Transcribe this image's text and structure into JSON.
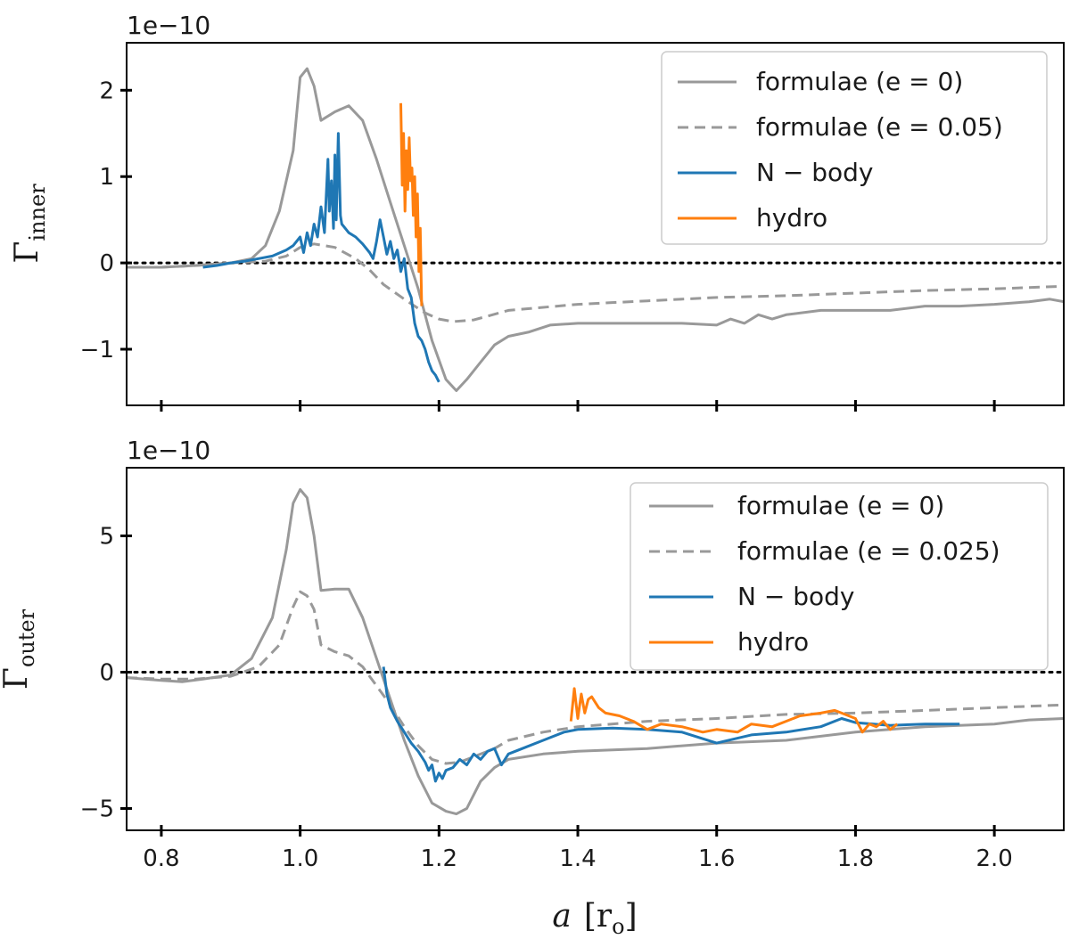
{
  "colors": {
    "formula": "#999999",
    "nbody": "#1f77b4",
    "hydro": "#ff7f0e",
    "axis": "#000000",
    "zero_line": "#000000"
  },
  "xlabel": {
    "symbol": "a",
    "unit": "[r",
    "unit_sub": "o",
    "unit_close": "]"
  },
  "chart_data": [
    {
      "type": "line",
      "panel": "top",
      "ylabel": "Γ",
      "ylabel_sub": "inner",
      "offset_text": "1e−10",
      "xlim": [
        0.75,
        2.1
      ],
      "ylim": [
        -1.65,
        2.55
      ],
      "xticks": [
        0.8,
        1.0,
        1.2,
        1.4,
        1.6,
        1.8,
        2.0
      ],
      "xtick_labels": [],
      "yticks": [
        -1,
        0,
        1,
        2
      ],
      "ytick_labels": [
        "−1",
        "0",
        "1",
        "2"
      ],
      "zero_line": true,
      "legend": {
        "position": "top-right",
        "entries": [
          {
            "label": "formulae (e = 0)",
            "style": "solid",
            "color_key": "formula"
          },
          {
            "label": "formulae (e = 0.05)",
            "style": "dashed",
            "color_key": "formula"
          },
          {
            "label": "N − body",
            "style": "solid",
            "color_key": "nbody"
          },
          {
            "label": "hydro",
            "style": "solid",
            "color_key": "hydro"
          }
        ]
      },
      "series": [
        {
          "name": "formulae (e = 0)",
          "color_key": "formula",
          "style": "solid",
          "width": 3,
          "x": [
            0.75,
            0.8,
            0.85,
            0.9,
            0.93,
            0.95,
            0.97,
            0.99,
            1.0,
            1.01,
            1.02,
            1.03,
            1.05,
            1.07,
            1.09,
            1.11,
            1.13,
            1.15,
            1.17,
            1.19,
            1.21,
            1.225,
            1.24,
            1.26,
            1.28,
            1.3,
            1.33,
            1.36,
            1.4,
            1.45,
            1.5,
            1.55,
            1.6,
            1.62,
            1.64,
            1.66,
            1.68,
            1.7,
            1.75,
            1.8,
            1.85,
            1.9,
            1.95,
            2.0,
            2.05,
            2.08,
            2.1
          ],
          "y": [
            -0.05,
            -0.05,
            -0.03,
            0.0,
            0.05,
            0.2,
            0.6,
            1.3,
            2.15,
            2.25,
            2.05,
            1.65,
            1.75,
            1.82,
            1.65,
            1.2,
            0.7,
            0.2,
            -0.3,
            -0.9,
            -1.35,
            -1.48,
            -1.35,
            -1.15,
            -0.95,
            -0.85,
            -0.8,
            -0.72,
            -0.7,
            -0.7,
            -0.7,
            -0.7,
            -0.72,
            -0.65,
            -0.7,
            -0.6,
            -0.65,
            -0.6,
            -0.55,
            -0.55,
            -0.55,
            -0.5,
            -0.5,
            -0.48,
            -0.45,
            -0.42,
            -0.45
          ]
        },
        {
          "name": "formulae (e = 0.05)",
          "color_key": "formula",
          "style": "dashed",
          "width": 3,
          "x": [
            0.75,
            0.8,
            0.85,
            0.9,
            0.95,
            0.98,
            1.0,
            1.02,
            1.05,
            1.08,
            1.1,
            1.12,
            1.15,
            1.18,
            1.2,
            1.22,
            1.25,
            1.3,
            1.4,
            1.5,
            1.6,
            1.7,
            1.8,
            1.9,
            2.0,
            2.1
          ],
          "y": [
            -0.05,
            -0.05,
            -0.03,
            0.0,
            0.02,
            0.08,
            0.18,
            0.22,
            0.18,
            0.05,
            -0.08,
            -0.25,
            -0.42,
            -0.58,
            -0.65,
            -0.68,
            -0.66,
            -0.55,
            -0.48,
            -0.44,
            -0.4,
            -0.38,
            -0.35,
            -0.32,
            -0.3,
            -0.27
          ]
        },
        {
          "name": "N − body",
          "color_key": "nbody",
          "style": "solid",
          "width": 3,
          "x": [
            0.86,
            0.88,
            0.9,
            0.92,
            0.94,
            0.96,
            0.98,
            0.99,
            1.0,
            1.005,
            1.01,
            1.015,
            1.02,
            1.025,
            1.03,
            1.035,
            1.04,
            1.042,
            1.045,
            1.048,
            1.05,
            1.052,
            1.055,
            1.058,
            1.06,
            1.065,
            1.07,
            1.08,
            1.09,
            1.1,
            1.105,
            1.11,
            1.115,
            1.12,
            1.125,
            1.13,
            1.135,
            1.14,
            1.145,
            1.15,
            1.155,
            1.16,
            1.165,
            1.17,
            1.175,
            1.18,
            1.185,
            1.19,
            1.195,
            1.2
          ],
          "y": [
            -0.05,
            -0.03,
            0.0,
            0.02,
            0.05,
            0.08,
            0.15,
            0.2,
            0.3,
            0.12,
            0.35,
            0.2,
            0.45,
            0.3,
            0.65,
            0.35,
            1.2,
            0.6,
            0.95,
            0.4,
            1.25,
            0.5,
            1.5,
            0.55,
            0.45,
            0.4,
            0.35,
            0.3,
            0.22,
            0.12,
            0.05,
            0.25,
            0.5,
            0.3,
            0.1,
            0.25,
            0.05,
            0.15,
            -0.1,
            0.05,
            -0.3,
            -0.4,
            -0.7,
            -0.85,
            -0.9,
            -1.0,
            -1.15,
            -1.25,
            -1.3,
            -1.38
          ]
        },
        {
          "name": "hydro",
          "color_key": "hydro",
          "style": "solid",
          "width": 3,
          "x": [
            1.145,
            1.147,
            1.149,
            1.151,
            1.153,
            1.155,
            1.157,
            1.159,
            1.161,
            1.163,
            1.165,
            1.167,
            1.169,
            1.171,
            1.173,
            1.175
          ],
          "y": [
            1.85,
            0.9,
            1.5,
            0.6,
            1.3,
            0.85,
            1.45,
            0.95,
            1.1,
            0.55,
            1.0,
            0.3,
            0.8,
            -0.1,
            0.4,
            -0.5
          ]
        }
      ]
    },
    {
      "type": "line",
      "panel": "bottom",
      "ylabel": "Γ",
      "ylabel_sub": "outer",
      "offset_text": "1e−10",
      "xlim": [
        0.75,
        2.1
      ],
      "ylim": [
        -5.8,
        7.5
      ],
      "xticks": [
        0.8,
        1.0,
        1.2,
        1.4,
        1.6,
        1.8,
        2.0
      ],
      "xtick_labels": [
        "0.8",
        "1.0",
        "1.2",
        "1.4",
        "1.6",
        "1.8",
        "2.0"
      ],
      "yticks": [
        -5,
        0,
        5
      ],
      "ytick_labels": [
        "−5",
        "0",
        "5"
      ],
      "zero_line": true,
      "legend": {
        "position": "top-right",
        "entries": [
          {
            "label": "formulae (e = 0)",
            "style": "solid",
            "color_key": "formula"
          },
          {
            "label": "formulae (e = 0.025)",
            "style": "dashed",
            "color_key": "formula"
          },
          {
            "label": "N − body",
            "style": "solid",
            "color_key": "nbody"
          },
          {
            "label": "hydro",
            "style": "solid",
            "color_key": "hydro"
          }
        ]
      },
      "series": [
        {
          "name": "formulae (e = 0)",
          "color_key": "formula",
          "style": "solid",
          "width": 3,
          "x": [
            0.75,
            0.8,
            0.83,
            0.86,
            0.9,
            0.93,
            0.96,
            0.98,
            0.99,
            1.0,
            1.01,
            1.02,
            1.03,
            1.05,
            1.07,
            1.09,
            1.11,
            1.13,
            1.15,
            1.17,
            1.19,
            1.21,
            1.225,
            1.24,
            1.26,
            1.28,
            1.3,
            1.35,
            1.4,
            1.5,
            1.6,
            1.7,
            1.8,
            1.9,
            2.0,
            2.05,
            2.1
          ],
          "y": [
            -0.2,
            -0.3,
            -0.35,
            -0.25,
            -0.1,
            0.5,
            2.0,
            4.5,
            6.2,
            6.7,
            6.4,
            5.0,
            3.0,
            3.05,
            3.05,
            2.0,
            0.5,
            -1.0,
            -2.5,
            -3.8,
            -4.8,
            -5.1,
            -5.2,
            -5.0,
            -4.0,
            -3.5,
            -3.2,
            -3.0,
            -2.9,
            -2.8,
            -2.6,
            -2.5,
            -2.2,
            -2.0,
            -1.9,
            -1.75,
            -1.7
          ]
        },
        {
          "name": "formulae (e = 0.025)",
          "color_key": "formula",
          "style": "dashed",
          "width": 3,
          "x": [
            0.75,
            0.8,
            0.85,
            0.9,
            0.94,
            0.97,
            0.99,
            1.0,
            1.01,
            1.02,
            1.03,
            1.05,
            1.07,
            1.09,
            1.11,
            1.13,
            1.15,
            1.17,
            1.19,
            1.21,
            1.23,
            1.25,
            1.28,
            1.3,
            1.35,
            1.4,
            1.5,
            1.6,
            1.7,
            1.8,
            1.9,
            2.0,
            2.1
          ],
          "y": [
            -0.2,
            -0.25,
            -0.25,
            -0.15,
            0.2,
            1.0,
            2.4,
            2.95,
            2.8,
            2.3,
            1.0,
            0.75,
            0.6,
            0.2,
            -0.5,
            -1.2,
            -2.0,
            -2.7,
            -3.2,
            -3.35,
            -3.3,
            -3.1,
            -2.8,
            -2.5,
            -2.2,
            -2.0,
            -1.8,
            -1.7,
            -1.55,
            -1.5,
            -1.4,
            -1.3,
            -1.2
          ]
        },
        {
          "name": "N − body",
          "color_key": "nbody",
          "style": "solid",
          "width": 3,
          "x": [
            1.12,
            1.125,
            1.13,
            1.14,
            1.15,
            1.16,
            1.17,
            1.18,
            1.185,
            1.19,
            1.195,
            1.2,
            1.205,
            1.21,
            1.22,
            1.23,
            1.24,
            1.25,
            1.26,
            1.27,
            1.28,
            1.29,
            1.3,
            1.32,
            1.35,
            1.38,
            1.4,
            1.45,
            1.5,
            1.55,
            1.6,
            1.65,
            1.7,
            1.75,
            1.78,
            1.8,
            1.85,
            1.9,
            1.95
          ],
          "y": [
            0.2,
            -0.8,
            -1.3,
            -1.8,
            -2.2,
            -2.6,
            -2.9,
            -3.3,
            -3.6,
            -3.4,
            -4.0,
            -3.7,
            -3.9,
            -3.6,
            -3.5,
            -3.2,
            -3.4,
            -3.0,
            -3.2,
            -2.9,
            -2.8,
            -3.4,
            -3.0,
            -2.8,
            -2.5,
            -2.2,
            -2.1,
            -2.05,
            -2.1,
            -2.2,
            -2.6,
            -2.3,
            -2.2,
            -2.0,
            -1.7,
            -1.85,
            -1.95,
            -1.9,
            -1.9
          ]
        },
        {
          "name": "hydro",
          "color_key": "hydro",
          "style": "solid",
          "width": 3,
          "x": [
            1.39,
            1.395,
            1.4,
            1.405,
            1.41,
            1.415,
            1.42,
            1.43,
            1.44,
            1.46,
            1.48,
            1.5,
            1.52,
            1.55,
            1.58,
            1.6,
            1.63,
            1.65,
            1.68,
            1.7,
            1.72,
            1.75,
            1.77,
            1.78,
            1.8,
            1.81,
            1.82,
            1.83,
            1.84,
            1.85,
            1.86
          ],
          "y": [
            -1.8,
            -0.6,
            -1.7,
            -0.8,
            -1.5,
            -1.0,
            -0.9,
            -1.3,
            -1.5,
            -1.6,
            -1.8,
            -2.1,
            -1.9,
            -2.0,
            -2.2,
            -2.1,
            -2.2,
            -1.9,
            -2.0,
            -1.8,
            -1.6,
            -1.5,
            -1.4,
            -1.5,
            -1.7,
            -2.2,
            -1.9,
            -2.0,
            -1.8,
            -2.1,
            -1.9
          ]
        }
      ]
    }
  ]
}
